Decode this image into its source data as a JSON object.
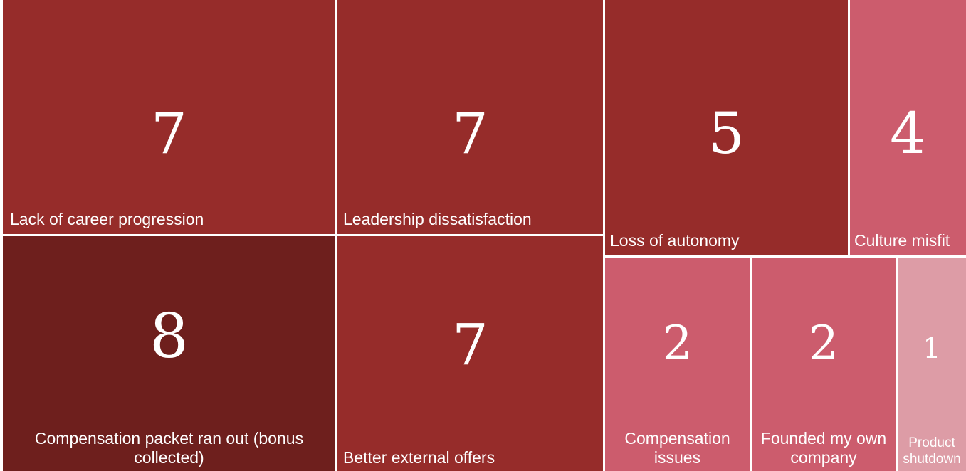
{
  "chart_data": {
    "type": "treemap",
    "title": "",
    "categories": [
      "Compensation packet ran out (bonus collected)",
      "Lack of career progression",
      "Leadership dissatisfaction",
      "Better external offers",
      "Loss of autonomy",
      "Culture misfit",
      "Compensation issues",
      "Founded my own company",
      "Product shutdown"
    ],
    "values": [
      8,
      7,
      7,
      7,
      5,
      4,
      2,
      2,
      1
    ],
    "colors": {
      "8": "#6e1f1d",
      "7": "#962c2a",
      "5": "#962c2a",
      "4": "#cc5c6d",
      "2": "#cc5c6d",
      "1": "#dd9ca6"
    }
  }
}
